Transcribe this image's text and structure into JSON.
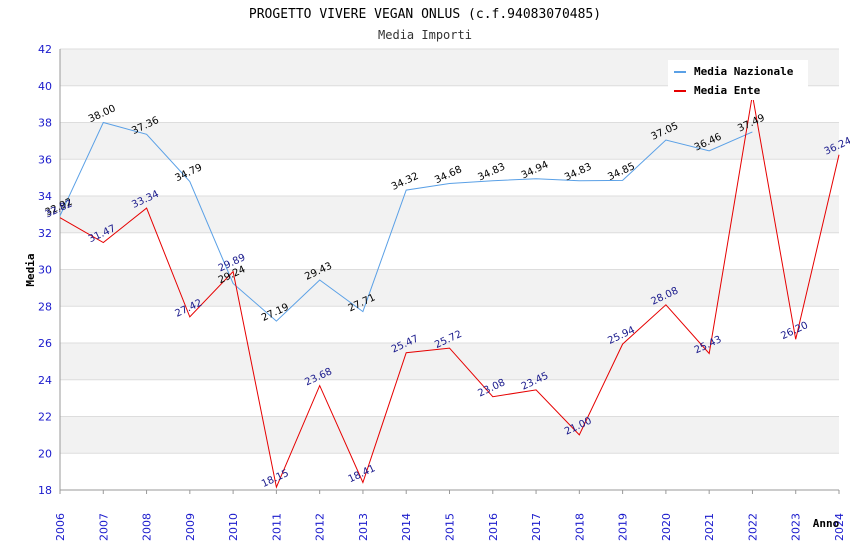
{
  "chart_data": {
    "type": "line",
    "title": "PROGETTO VIVERE VEGAN ONLUS (c.f.94083070485)",
    "subtitle": "Media Importi",
    "xlabel": "Anno",
    "ylabel": "Media",
    "ylim": [
      18,
      42
    ],
    "y_ticks": [
      18,
      20,
      22,
      24,
      26,
      28,
      30,
      32,
      34,
      36,
      38,
      40,
      42
    ],
    "categories": [
      "2006",
      "2007",
      "2008",
      "2009",
      "2010",
      "2011",
      "2012",
      "2013",
      "2014",
      "2015",
      "2016",
      "2017",
      "2018",
      "2019",
      "2020",
      "2021",
      "2022",
      "2023",
      "2024"
    ],
    "grid": true,
    "legend_position": "top-right",
    "series": [
      {
        "name": "Media Nazionale",
        "color": "#5aa0e6",
        "label_color": "#000000",
        "values": [
          32.92,
          38.0,
          37.36,
          34.79,
          29.24,
          27.19,
          29.43,
          27.71,
          34.32,
          34.68,
          34.83,
          34.94,
          34.83,
          34.85,
          37.05,
          36.46,
          37.49,
          null,
          null
        ],
        "labels": [
          "32.92",
          "38.00",
          "37.36",
          "34.79",
          "29.24",
          "27.19",
          "29.43",
          "27.71",
          "34.32",
          "34.68",
          "34.83",
          "34.94",
          "34.83",
          "34.85",
          "37.05",
          "36.46",
          "37.49",
          null,
          null
        ]
      },
      {
        "name": "Media Ente",
        "color": "#e60000",
        "label_color": "#1a1a8c",
        "values": [
          32.82,
          31.47,
          33.34,
          27.42,
          29.89,
          18.15,
          23.68,
          18.41,
          25.47,
          25.72,
          23.08,
          23.45,
          21.0,
          25.94,
          28.08,
          25.43,
          39.5,
          26.2,
          36.24
        ],
        "labels": [
          "32.82",
          "31.47",
          "33.34",
          "27.42",
          "29.89",
          "18.15",
          "23.68",
          "18.41",
          "25.47",
          "25.72",
          "23.08",
          "23.45",
          "21.00",
          "25.94",
          "28.08",
          "25.43",
          null,
          "26.20",
          "36.24"
        ]
      }
    ]
  }
}
